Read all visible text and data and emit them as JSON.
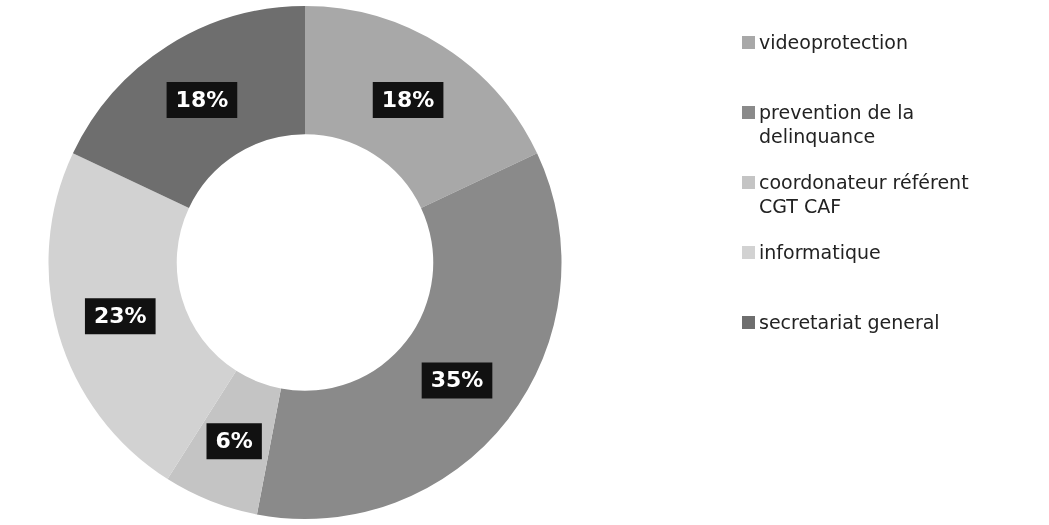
{
  "chart_data": {
    "type": "donut",
    "categories": [
      "videoprotection",
      "prevention de la delinquance",
      "coordonateur référent CGT CAF",
      "informatique",
      "secretariat general"
    ],
    "values": [
      18,
      35,
      6,
      23,
      18
    ],
    "colors": [
      "#a8a8a8",
      "#8a8a8a",
      "#c4c4c4",
      "#d2d2d2",
      "#6e6e6e"
    ],
    "value_labels": [
      "18%",
      "35%",
      "6%",
      "23%",
      "18%"
    ],
    "legend": "right"
  }
}
